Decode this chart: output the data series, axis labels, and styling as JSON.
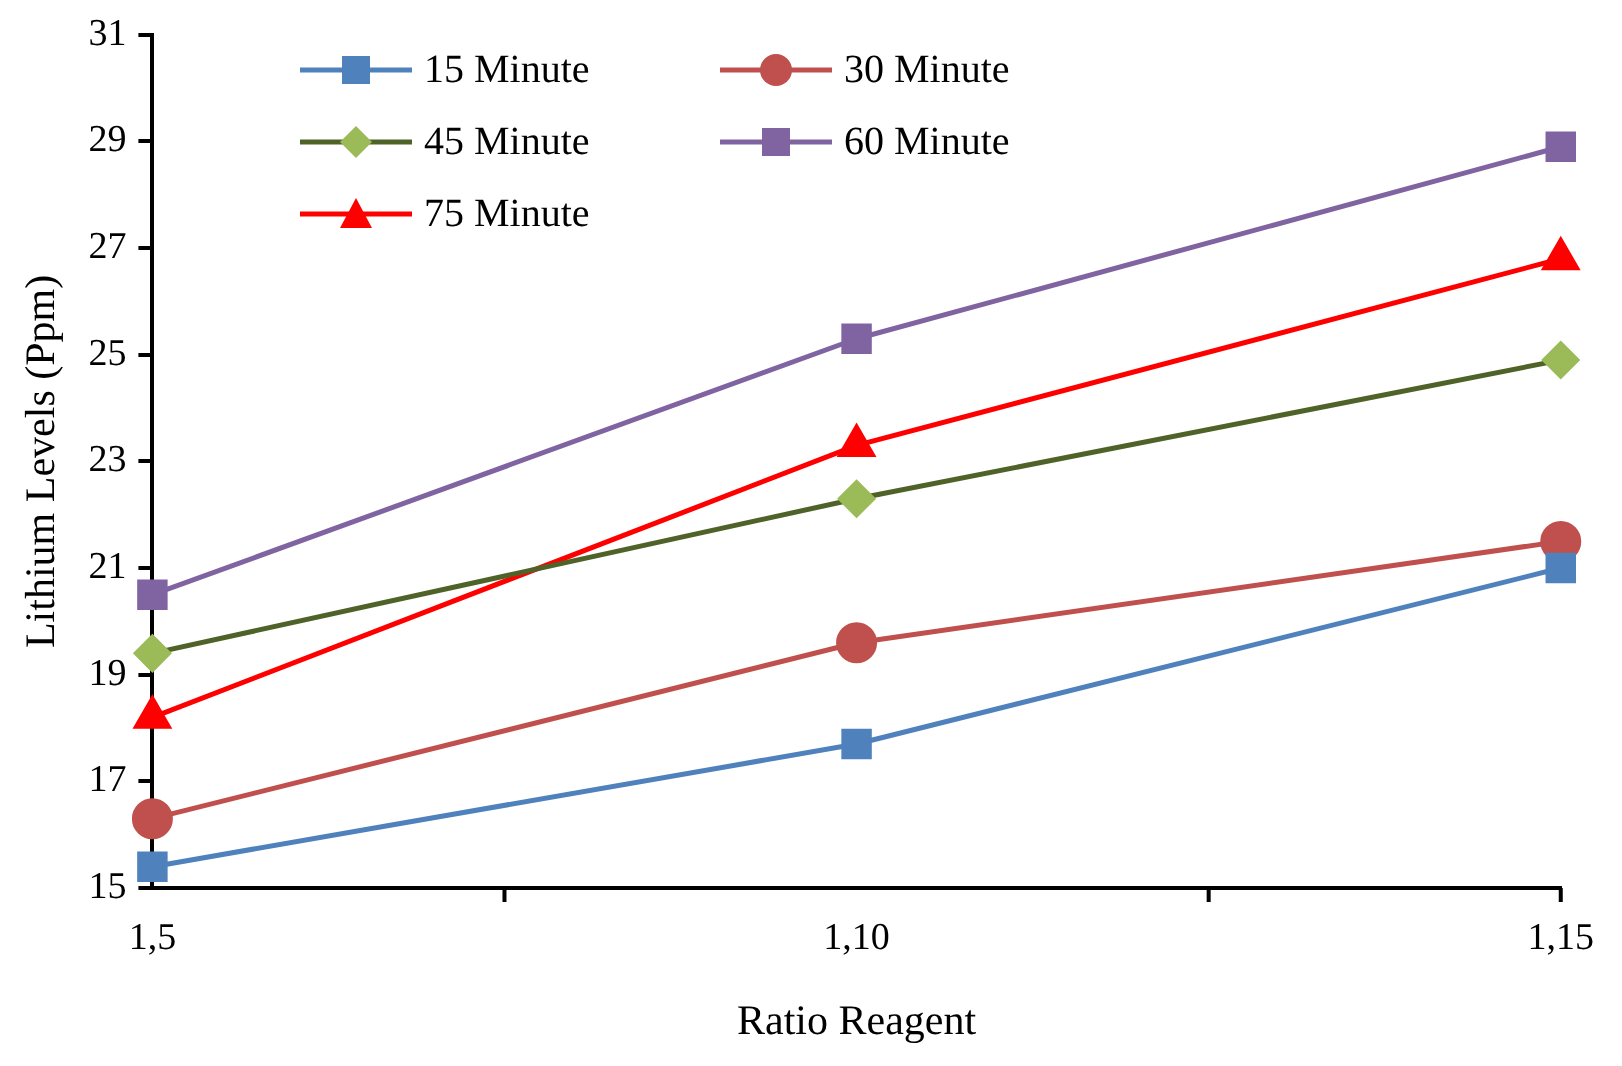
{
  "chart_data": {
    "type": "line",
    "xlabel": "Ratio Reagent",
    "ylabel": "Lithium Levels (Ppm)",
    "categories": [
      "1,5",
      "1,10",
      "1,15"
    ],
    "ylim": [
      15,
      31
    ],
    "yticks": [
      15,
      17,
      19,
      21,
      23,
      25,
      27,
      29,
      31
    ],
    "grid": false,
    "legend": "top",
    "series": [
      {
        "name": "15 Minute",
        "color": "#4f81bd",
        "marker": "square",
        "values": [
          15.4,
          17.7,
          21.0
        ]
      },
      {
        "name": "30 Minute",
        "color": "#c0504d",
        "marker": "circle",
        "values": [
          16.3,
          19.6,
          21.5
        ]
      },
      {
        "name": "45 Minute",
        "color": "#4f6228",
        "colors": [
          "#9bbb59",
          "#9bbb59",
          "#9bbb59"
        ],
        "marker": "diamond",
        "values": [
          19.4,
          22.3,
          24.9
        ]
      },
      {
        "name": "60 Minute",
        "color": "#8064a2",
        "marker": "square",
        "values": [
          20.5,
          25.3,
          28.9
        ]
      },
      {
        "name": "75 Minute",
        "color": "#ff0000",
        "marker": "triangle",
        "values": [
          18.2,
          23.3,
          26.8
        ]
      }
    ]
  }
}
